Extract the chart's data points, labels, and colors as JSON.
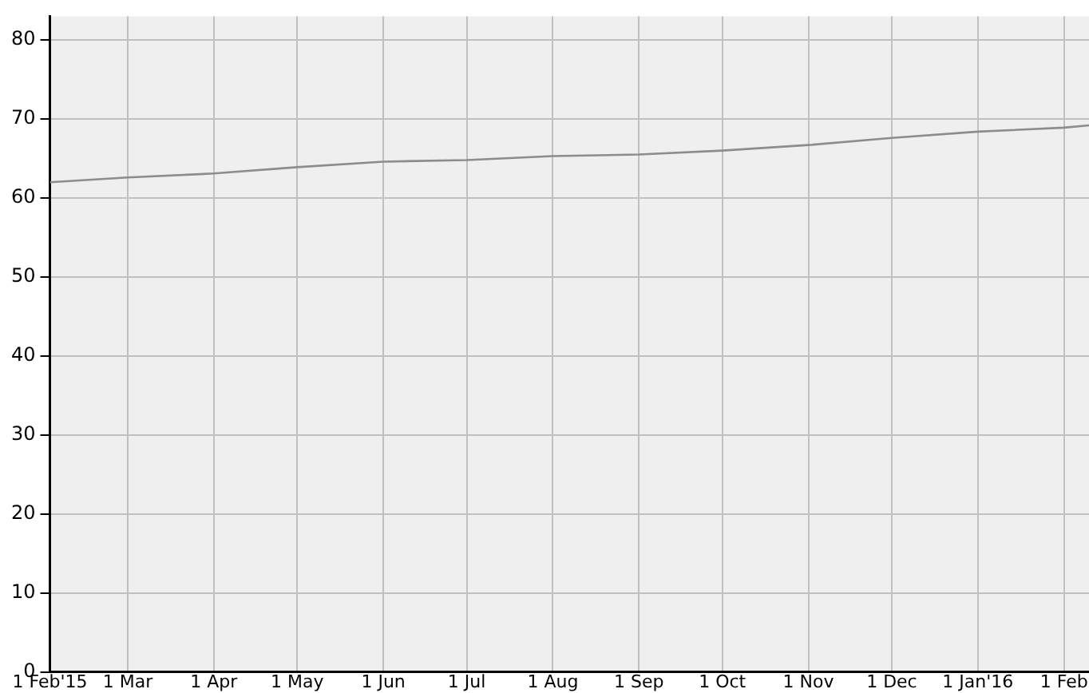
{
  "chart_data": {
    "type": "line",
    "x": [
      "2015-02-01",
      "2015-03-01",
      "2015-04-01",
      "2015-05-01",
      "2015-06-01",
      "2015-07-01",
      "2015-08-01",
      "2015-09-01",
      "2015-10-01",
      "2015-11-01",
      "2015-12-01",
      "2016-01-01",
      "2016-02-01",
      "2016-02-10"
    ],
    "series": [
      {
        "color": "#8c8c8c",
        "values": [
          62.0,
          62.6,
          63.1,
          63.9,
          64.6,
          64.8,
          65.3,
          65.5,
          66.0,
          66.7,
          67.6,
          68.4,
          68.9,
          69.2
        ]
      }
    ],
    "xlim": [
      "2015-02-01",
      "2016-02-10"
    ],
    "xticks": [
      {
        "value": "2015-02-01",
        "label": "1 Feb'15"
      },
      {
        "value": "2015-03-01",
        "label": "1 Mar"
      },
      {
        "value": "2015-04-01",
        "label": "1 Apr"
      },
      {
        "value": "2015-05-01",
        "label": "1 May"
      },
      {
        "value": "2015-06-01",
        "label": "1 Jun"
      },
      {
        "value": "2015-07-01",
        "label": "1 Jul"
      },
      {
        "value": "2015-08-01",
        "label": "1 Aug"
      },
      {
        "value": "2015-09-01",
        "label": "1 Sep"
      },
      {
        "value": "2015-10-01",
        "label": "1 Oct"
      },
      {
        "value": "2015-11-01",
        "label": "1 Nov"
      },
      {
        "value": "2015-12-01",
        "label": "1 Dec"
      },
      {
        "value": "2016-01-01",
        "label": "1 Jan'16"
      },
      {
        "value": "2016-02-01",
        "label": "1 Feb"
      }
    ],
    "ylim": [
      0,
      83
    ],
    "yticks": [
      0,
      10,
      20,
      30,
      40,
      50,
      60,
      70,
      80
    ],
    "grid": true,
    "legend": false,
    "marker": "none",
    "line_style": "solid"
  }
}
